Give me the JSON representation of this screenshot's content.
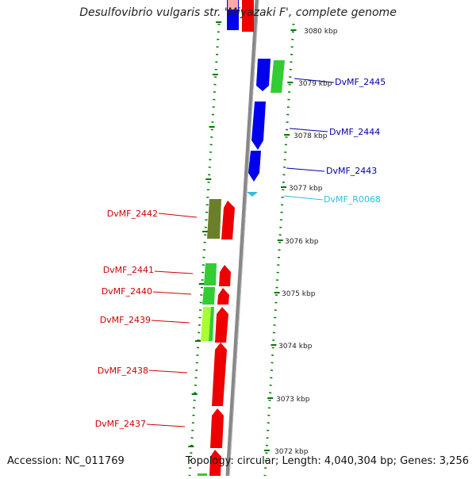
{
  "title": "Desulfovibrio vulgaris str. 'Miyazaki F', complete genome",
  "accession": "Accession: NC_011769",
  "topology": "Topology: circular; Length: 4,040,304 bp; Genes: 3,256",
  "colors": {
    "forward_blue": "#0000ee",
    "reverse_red": "#ee0000",
    "green": "#33cc33",
    "olive": "#6b7f2a",
    "lime": "#aaff33",
    "rna_cyan": "#33bbdd",
    "tick_green": "#007700",
    "backbone": "#888888"
  },
  "kbp_labels": [
    "3080 kbp",
    "3079 kbp",
    "3078 kbp",
    "3077 kbp",
    "3076 kbp",
    "3075 kbp",
    "3074 kbp",
    "3073 kbp",
    "3072 kbp"
  ],
  "genes": [
    {
      "id": "DvMF_2445",
      "strand": "forward",
      "color": "green"
    },
    {
      "id": "DvMF_2444",
      "strand": "forward",
      "color": "blue"
    },
    {
      "id": "DvMF_2443",
      "strand": "forward",
      "color": "blue"
    },
    {
      "id": "DvMF_R0068",
      "strand": "forward",
      "color": "cyan"
    },
    {
      "id": "DvMF_2442",
      "strand": "reverse",
      "color": "olive"
    },
    {
      "id": "DvMF_2441",
      "strand": "reverse",
      "color": "green"
    },
    {
      "id": "DvMF_2440",
      "strand": "reverse",
      "color": "green"
    },
    {
      "id": "DvMF_2439",
      "strand": "reverse",
      "color": "lime"
    },
    {
      "id": "DvMF_2438",
      "strand": "reverse",
      "color": "red"
    },
    {
      "id": "DvMF_2437",
      "strand": "reverse",
      "color": "red"
    }
  ]
}
